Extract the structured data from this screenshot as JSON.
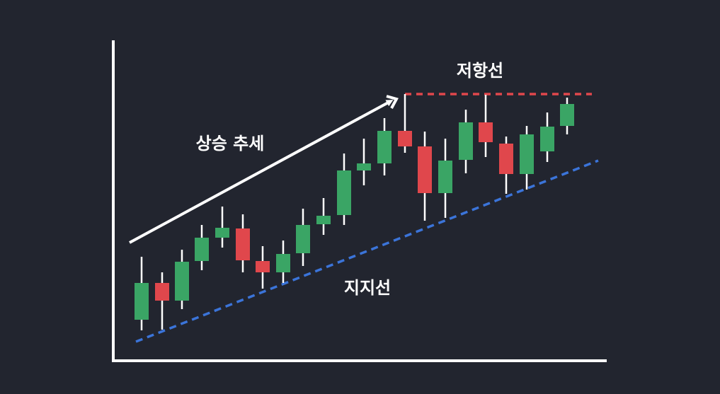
{
  "labels": {
    "trend": "상승 추세",
    "resistance": "저항선",
    "support": "지지선"
  }
}
